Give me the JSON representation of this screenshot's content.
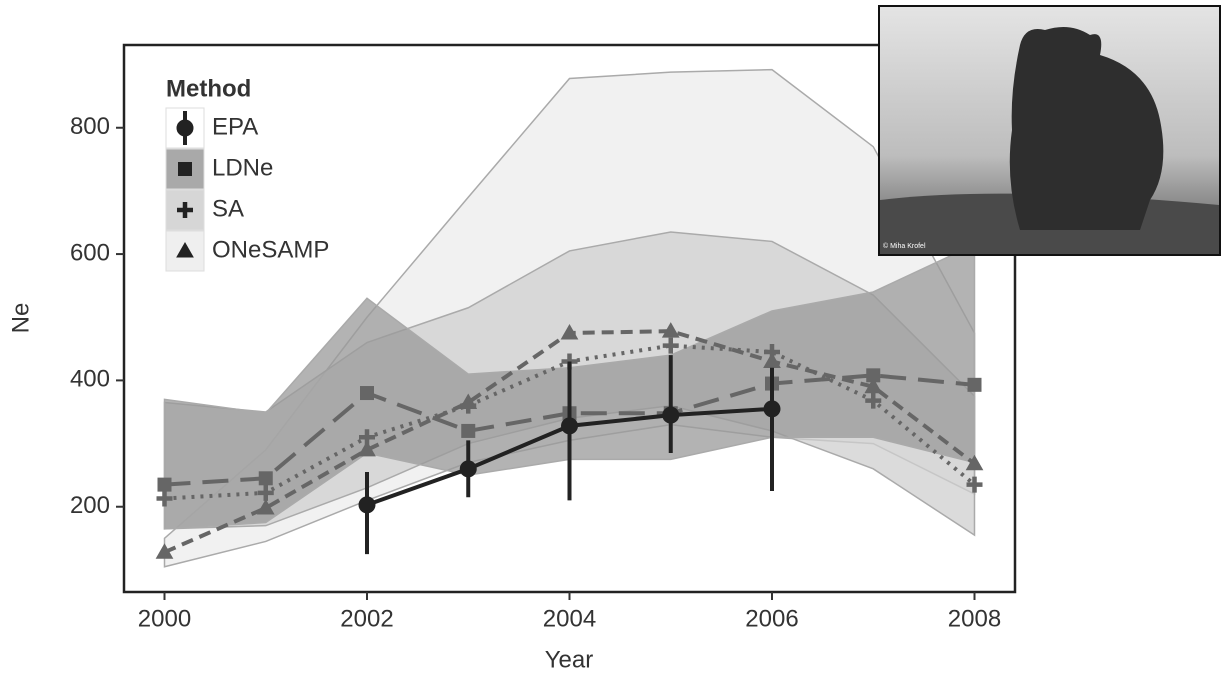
{
  "chart_data": {
    "type": "line",
    "x_label": "Year",
    "y_label": "Ne",
    "x": [
      2000,
      2001,
      2002,
      2003,
      2004,
      2005,
      2006,
      2007,
      2008
    ],
    "xlim": [
      1999.6,
      2008.4
    ],
    "xticks": [
      2000,
      2002,
      2004,
      2006,
      2008
    ],
    "ylim": [
      65,
      931
    ],
    "yticks": [
      200,
      400,
      600,
      800
    ],
    "legend_title": "Method",
    "legend": "top-left",
    "series": [
      {
        "name": "EPA",
        "color": "#222222",
        "dash": "solid",
        "marker": "circle",
        "values": [
          null,
          null,
          203,
          260,
          328,
          345,
          355,
          null,
          null
        ],
        "lower": [
          null,
          null,
          125,
          215,
          210,
          285,
          225,
          null,
          null
        ],
        "upper": [
          null,
          null,
          255,
          305,
          430,
          440,
          420,
          null,
          null
        ]
      },
      {
        "name": "LDNe",
        "color": "#666666",
        "dash": "long",
        "marker": "square",
        "band_color": "#9a9a9a",
        "values": [
          235,
          245,
          380,
          320,
          348,
          348,
          395,
          408,
          393
        ],
        "lower": [
          165,
          175,
          285,
          250,
          275,
          275,
          310,
          310,
          270
        ],
        "upper": [
          370,
          348,
          530,
          410,
          420,
          440,
          510,
          540,
          615
        ]
      },
      {
        "name": "SA",
        "color": "#666666",
        "dash": "dotted",
        "marker": "plus",
        "band_color": "#cfcfcf",
        "values": [
          213,
          222,
          310,
          360,
          430,
          455,
          445,
          368,
          235
        ],
        "lower": [
          165,
          170,
          230,
          300,
          340,
          360,
          320,
          260,
          155
        ],
        "upper": [
          365,
          350,
          460,
          515,
          605,
          635,
          620,
          535,
          375
        ]
      },
      {
        "name": "ONeSAMP",
        "color": "#666666",
        "dash": "dashed",
        "marker": "triangle",
        "band_color": "#ececec",
        "values": [
          128,
          198,
          290,
          365,
          475,
          478,
          430,
          390,
          268
        ],
        "lower": [
          105,
          145,
          210,
          270,
          305,
          330,
          310,
          300,
          220
        ],
        "upper": [
          150,
          290,
          500,
          690,
          878,
          888,
          892,
          770,
          475
        ]
      }
    ]
  },
  "inset": {
    "credit": "© Miha Krofel"
  }
}
